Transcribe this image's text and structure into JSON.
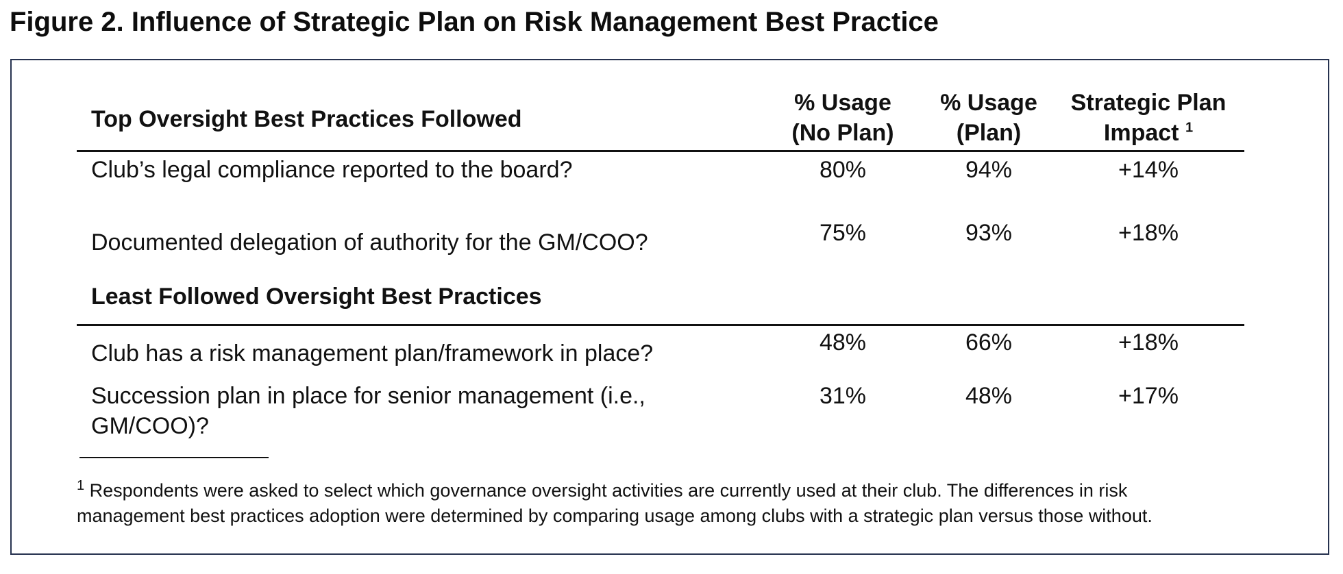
{
  "title": "Figure 2. Influence of Strategic Plan on Risk Management Best Practice",
  "chart_data": {
    "type": "table",
    "columns": {
      "col1": {
        "line1": "% Usage",
        "line2": "(No Plan)"
      },
      "col2": {
        "line1": "% Usage",
        "line2": "(Plan)"
      },
      "col3": {
        "line1": "Strategic Plan",
        "line2": "Impact",
        "sup": "1"
      }
    },
    "sections": [
      {
        "header": "Top Oversight Best Practices Followed",
        "rows": [
          {
            "label": "Club’s legal compliance reported to the board?",
            "no_plan": "80%",
            "plan": "94%",
            "impact": "+14%"
          },
          {
            "label": "Documented delegation of authority for the GM/COO?",
            "no_plan": "75%",
            "plan": "93%",
            "impact": "+18%"
          }
        ]
      },
      {
        "header": "Least Followed Oversight Best Practices",
        "rows": [
          {
            "label": "Club has a risk management plan/framework in place?",
            "no_plan": "48%",
            "plan": "66%",
            "impact": "+18%"
          },
          {
            "label": "Succession plan in place for senior management (i.e.,",
            "label_line2": "GM/COO)?",
            "no_plan": "31%",
            "plan": "48%",
            "impact": "+17%"
          }
        ]
      }
    ]
  },
  "footnote": {
    "marker": "1",
    "line1": "Respondents were asked to select which governance oversight activities are currently used at their club. The differences in risk",
    "line2": "management best practices adoption were determined by comparing usage among clubs with a strategic plan versus those without."
  }
}
